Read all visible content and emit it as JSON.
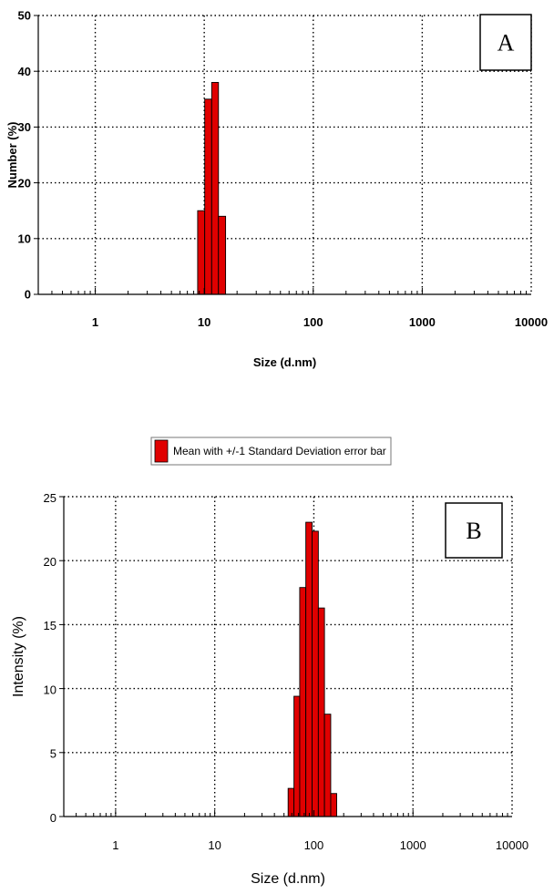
{
  "chart_data": [
    {
      "id": "A",
      "type": "bar",
      "panel_label": "A",
      "xlabel": "Size (d.nm)",
      "ylabel": "Number (%)",
      "xscale": "log",
      "xlim": [
        0.3,
        10000
      ],
      "ylim": [
        0,
        50
      ],
      "xticks": [
        1,
        10,
        100,
        1000,
        10000
      ],
      "xtick_labels": [
        "1",
        "10",
        "100",
        "1000",
        "10000"
      ],
      "yticks": [
        0,
        10,
        20,
        30,
        40,
        50
      ],
      "ytick_labels": [
        "0",
        "10",
        "20",
        "30",
        "40",
        "50"
      ],
      "grid": true,
      "bar_color": "#e00000",
      "bars": [
        {
          "x0": 8.7,
          "x1": 10.1,
          "value": 15
        },
        {
          "x0": 10.1,
          "x1": 11.7,
          "value": 35
        },
        {
          "x0": 11.7,
          "x1": 13.5,
          "value": 38
        },
        {
          "x0": 13.5,
          "x1": 15.7,
          "value": 14
        }
      ]
    },
    {
      "id": "B",
      "type": "bar",
      "panel_label": "B",
      "xlabel": "Size (d.nm)",
      "ylabel": "Intensity (%)",
      "xscale": "log",
      "xlim": [
        0.3,
        10000
      ],
      "ylim": [
        0,
        25
      ],
      "xticks": [
        1,
        10,
        100,
        1000,
        10000
      ],
      "xtick_labels": [
        "1",
        "10",
        "100",
        "1000",
        "10000"
      ],
      "yticks": [
        0,
        5,
        10,
        15,
        20,
        25
      ],
      "ytick_labels": [
        "0",
        "5",
        "10",
        "15",
        "20",
        "25"
      ],
      "grid": true,
      "legend": {
        "label": "Mean with +/-1 Standard Deviation error bar",
        "position": "top"
      },
      "bar_color": "#e00000",
      "bars": [
        {
          "x0": 55,
          "x1": 63,
          "value": 2.2
        },
        {
          "x0": 63,
          "x1": 72,
          "value": 9.4
        },
        {
          "x0": 72,
          "x1": 83,
          "value": 17.9
        },
        {
          "x0": 83,
          "x1": 96,
          "value": 23
        },
        {
          "x0": 96,
          "x1": 111,
          "value": 22.3
        },
        {
          "x0": 111,
          "x1": 128,
          "value": 16.3
        },
        {
          "x0": 128,
          "x1": 148,
          "value": 8
        },
        {
          "x0": 148,
          "x1": 170,
          "value": 1.8
        }
      ]
    }
  ]
}
